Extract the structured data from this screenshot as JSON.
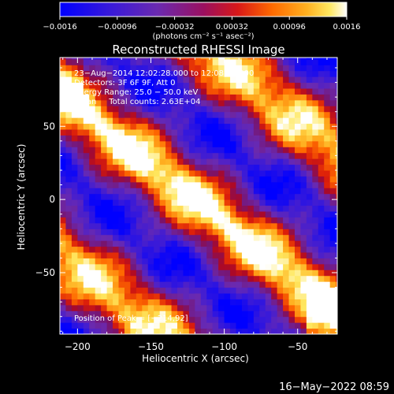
{
  "chart_data": {
    "type": "heatmap",
    "title": "Reconstructed RHESSI Image",
    "xlabel": "Heliocentric X (arcsec)",
    "ylabel": "Heliocentric Y (arcsec)",
    "xlim": [
      -212,
      -23
    ],
    "ylim": [
      -92,
      97
    ],
    "x_ticks": [
      -200,
      -150,
      -100,
      -50
    ],
    "y_ticks": [
      -50,
      0,
      50
    ],
    "x_tick_labels": [
      "−200",
      "−150",
      "−100",
      "−50"
    ],
    "y_tick_labels": [
      "−50",
      "0",
      "50"
    ],
    "colorbar": {
      "range": [
        -0.0016,
        0.0016
      ],
      "ticks": [
        -0.0016,
        -0.00096,
        -0.00032,
        0.00032,
        0.00096,
        0.0016
      ],
      "tick_labels": [
        "−0.0016",
        "−0.00096",
        "−0.00032",
        "0.00032",
        "0.00096",
        "0.0016"
      ],
      "unit_label": "(photons cm⁻² s⁻¹ asec⁻²)",
      "colormap": "blue-purple-red-orange-yellow-white"
    },
    "annotations": [
      "23−Aug−2014 12:02:28.000 to 12:08:28.000",
      "Detectors: 3F 6F 9F, Att 0",
      "Energy Range: 25.0 − 50.0 keV",
      "Clean     Total counts: 2.63E+04"
    ],
    "peak_label": "Position of Peak = [−214,92]",
    "peak_position": [
      -214,
      92
    ],
    "grid": false
  },
  "footer": {
    "date_stamp": "16−May−2022 08:59"
  },
  "colors": {
    "background": "#000000",
    "text": "#ffffff"
  }
}
